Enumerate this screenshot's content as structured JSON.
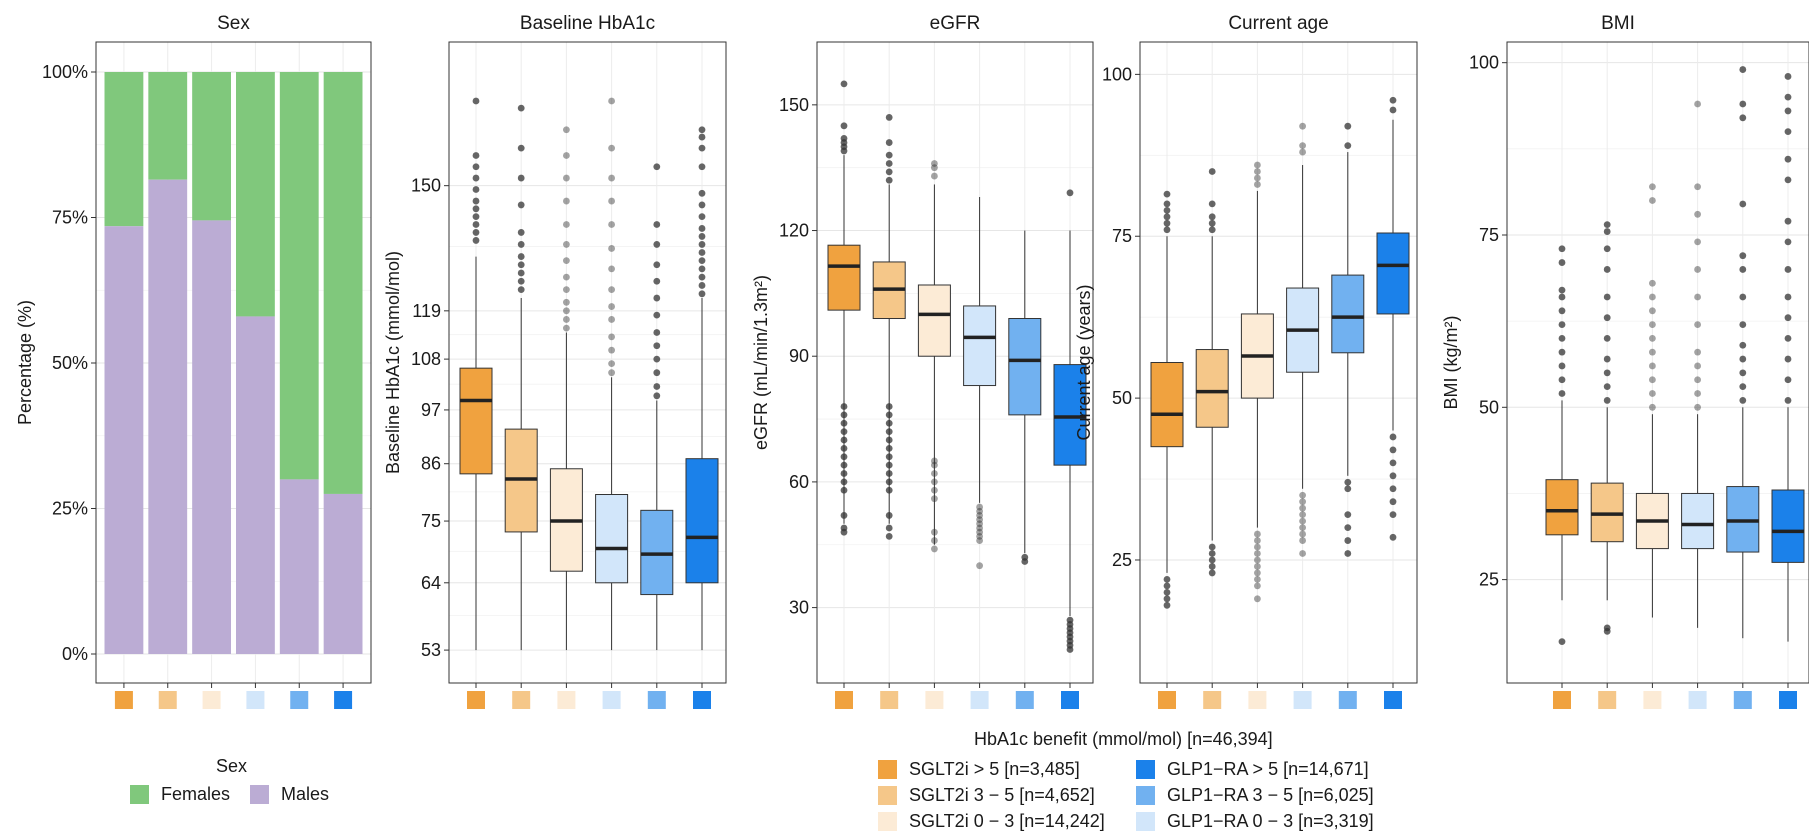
{
  "group_colors": [
    "#F0A23F",
    "#F5C789",
    "#FCEBD6",
    "#D2E6FA",
    "#71B1F0",
    "#1B81EA"
  ],
  "sex_colors": {
    "Females": "#80C87C",
    "Males": "#BBACD4"
  },
  "chart_data": [
    {
      "type": "bar",
      "stacked": true,
      "title": "Sex",
      "ylabel": "Percentage (%)",
      "xlabel": "",
      "ylim": [
        0,
        100
      ],
      "y_tick_labels": [
        "0%",
        "25%",
        "50%",
        "75%",
        "100%"
      ],
      "categories": [
        "SGLT2i > 5",
        "SGLT2i 3 − 5",
        "SGLT2i 0 − 3",
        "GLP1−RA 0 − 3",
        "GLP1−RA 3 − 5",
        "GLP1−RA > 5"
      ],
      "series": [
        {
          "name": "Males",
          "values": [
            73.5,
            81.5,
            74.5,
            58,
            30,
            27.5
          ]
        },
        {
          "name": "Females",
          "values": [
            26.5,
            18.5,
            25.5,
            42,
            70,
            72.5
          ]
        }
      ],
      "grid": true,
      "legend": "bottom"
    },
    {
      "type": "box",
      "title": "Baseline HbA1c",
      "ylabel": "Baseline HbA1c (mmol/mol)",
      "ylim": [
        48,
        190
      ],
      "scale": "sqrt",
      "y_ticks": [
        53,
        64,
        75,
        86,
        97,
        108,
        119,
        150
      ],
      "categories": [
        "SGLT2i > 5",
        "SGLT2i 3 − 5",
        "SGLT2i 0 − 3",
        "GLP1−RA 0 − 3",
        "GLP1−RA 3 − 5",
        "GLP1−RA > 5"
      ],
      "boxes": [
        {
          "whisker_low": 53,
          "q1": 84,
          "median": 99,
          "q3": 106,
          "whisker_high": 132,
          "outliers": [
            136,
            138,
            140,
            142,
            144,
            146,
            149,
            152,
            155,
            158,
            173
          ]
        },
        {
          "whisker_low": 53,
          "q1": 73,
          "median": 83,
          "q3": 93,
          "whisker_high": 122,
          "outliers": [
            124,
            126,
            128,
            130,
            132,
            135,
            138,
            145,
            152,
            160,
            171
          ]
        },
        {
          "whisker_low": 53,
          "q1": 66,
          "median": 75,
          "q3": 85,
          "whisker_high": 114,
          "outliers": [
            115,
            117,
            119,
            121,
            124,
            127,
            131,
            135,
            140,
            146,
            152,
            158,
            165
          ]
        },
        {
          "whisker_low": 53,
          "q1": 64,
          "median": 70,
          "q3": 80,
          "whisker_high": 104,
          "outliers": [
            105,
            107,
            110,
            113,
            117,
            120,
            124,
            129,
            134,
            140,
            146,
            152,
            160,
            173
          ]
        },
        {
          "whisker_low": 53,
          "q1": 62,
          "median": 69,
          "q3": 77,
          "whisker_high": 99,
          "outliers": [
            100,
            102,
            105,
            108,
            111,
            114,
            118,
            122,
            126,
            130,
            135,
            140,
            155
          ]
        },
        {
          "whisker_low": 53,
          "q1": 64,
          "median": 72,
          "q3": 87,
          "whisker_high": 122,
          "outliers": [
            123,
            125,
            127,
            129,
            131,
            133,
            135,
            137,
            139,
            142,
            145,
            148,
            155,
            160,
            163,
            165
          ]
        }
      ]
    },
    {
      "type": "box",
      "title": "eGFR",
      "ylabel": "eGFR (mL/min/1.3m²)",
      "ylim": [
        12,
        165
      ],
      "scale": "linear",
      "y_ticks": [
        30,
        60,
        90,
        120,
        150
      ],
      "categories": [
        "SGLT2i > 5",
        "SGLT2i 3 − 5",
        "SGLT2i 0 − 3",
        "GLP1−RA 0 − 3",
        "GLP1−RA 3 − 5",
        "GLP1−RA > 5"
      ],
      "boxes": [
        {
          "whisker_low": 50,
          "q1": 101,
          "median": 111.5,
          "q3": 116.5,
          "whisker_high": 138,
          "outliers": [
            48,
            49,
            52,
            58,
            60,
            62,
            64,
            66,
            68,
            70,
            72,
            74,
            76,
            78,
            139,
            140,
            141,
            142,
            145,
            155
          ]
        },
        {
          "whisker_low": 50,
          "q1": 99,
          "median": 106,
          "q3": 112.5,
          "whisker_high": 131,
          "outliers": [
            47,
            49,
            52,
            58,
            60,
            62,
            64,
            66,
            68,
            70,
            72,
            74,
            76,
            78,
            132,
            134,
            136,
            138,
            141,
            147
          ]
        },
        {
          "whisker_low": 45,
          "q1": 90,
          "median": 100,
          "q3": 107,
          "whisker_high": 131,
          "outliers": [
            44,
            46,
            48,
            56,
            58,
            60,
            62,
            64,
            65,
            133,
            135,
            136
          ]
        },
        {
          "whisker_low": 55,
          "q1": 83,
          "median": 94.5,
          "q3": 102,
          "whisker_high": 128,
          "outliers": [
            40,
            46,
            47,
            48,
            49,
            50,
            51,
            52,
            53,
            54
          ]
        },
        {
          "whisker_low": 43,
          "q1": 76,
          "median": 89,
          "q3": 99,
          "whisker_high": 120,
          "outliers": [
            41,
            42
          ]
        },
        {
          "whisker_low": 28,
          "q1": 64,
          "median": 75.5,
          "q3": 88,
          "whisker_high": 120,
          "outliers": [
            20,
            21,
            22,
            23,
            24,
            25,
            26,
            27,
            129
          ]
        }
      ]
    },
    {
      "type": "box",
      "title": "Current age",
      "ylabel": "Current age (years)",
      "ylim": [
        6,
        105
      ],
      "scale": "linear",
      "y_ticks": [
        25,
        50,
        75,
        100
      ],
      "categories": [
        "SGLT2i > 5",
        "SGLT2i 3 − 5",
        "SGLT2i 0 − 3",
        "GLP1−RA 0 − 3",
        "GLP1−RA 3 − 5",
        "GLP1−RA > 5"
      ],
      "boxes": [
        {
          "whisker_low": 23,
          "q1": 42.5,
          "median": 47.5,
          "q3": 55.5,
          "whisker_high": 75,
          "outliers": [
            18,
            19,
            20,
            21,
            22,
            76,
            77,
            78,
            79,
            80,
            81.5
          ]
        },
        {
          "whisker_low": 28,
          "q1": 45.5,
          "median": 51,
          "q3": 57.5,
          "whisker_high": 75,
          "outliers": [
            23,
            24,
            25,
            26,
            27,
            76,
            77,
            78,
            80,
            85
          ]
        },
        {
          "whisker_low": 30,
          "q1": 50,
          "median": 56.5,
          "q3": 63,
          "whisker_high": 82,
          "outliers": [
            19,
            21,
            22,
            23,
            24,
            25,
            26,
            27,
            28,
            29,
            83,
            84,
            85,
            86
          ]
        },
        {
          "whisker_low": 36,
          "q1": 54,
          "median": 60.5,
          "q3": 67,
          "whisker_high": 86,
          "outliers": [
            26,
            28,
            29,
            30,
            31,
            32,
            33,
            34,
            35,
            88,
            89,
            92
          ]
        },
        {
          "whisker_low": 38,
          "q1": 57,
          "median": 62.5,
          "q3": 69,
          "whisker_high": 88,
          "outliers": [
            26,
            28,
            30,
            32,
            36,
            37,
            89,
            92
          ]
        },
        {
          "whisker_low": 45,
          "q1": 63,
          "median": 70.5,
          "q3": 75.5,
          "whisker_high": 93,
          "outliers": [
            28.5,
            32,
            34,
            36,
            38,
            40,
            42,
            44,
            94.5,
            96
          ]
        }
      ]
    },
    {
      "type": "box",
      "title": "BMI",
      "ylabel": "BMI (kg/m²)",
      "ylim": [
        10,
        103
      ],
      "scale": "linear",
      "y_ticks": [
        25,
        50,
        75,
        100
      ],
      "categories": [
        "SGLT2i > 5",
        "SGLT2i 3 − 5",
        "SGLT2i 0 − 3",
        "GLP1−RA 0 − 3",
        "GLP1−RA 3 − 5",
        "GLP1−RA > 5"
      ],
      "boxes": [
        {
          "whisker_low": 22,
          "q1": 31.5,
          "median": 35,
          "q3": 39.5,
          "whisker_high": 51,
          "outliers": [
            16,
            52,
            54,
            56,
            58,
            60,
            62,
            64,
            66,
            67,
            71,
            73
          ]
        },
        {
          "whisker_low": 22,
          "q1": 30.5,
          "median": 34.5,
          "q3": 39,
          "whisker_high": 50,
          "outliers": [
            17.5,
            18,
            51,
            53,
            55,
            57,
            60,
            63,
            66,
            70,
            73,
            75.5,
            76.5
          ]
        },
        {
          "whisker_low": 19.5,
          "q1": 29.5,
          "median": 33.5,
          "q3": 37.5,
          "whisker_high": 49,
          "outliers": [
            50,
            52,
            54,
            56,
            58,
            60,
            62,
            64,
            66,
            68,
            80,
            82
          ]
        },
        {
          "whisker_low": 18,
          "q1": 29.5,
          "median": 33,
          "q3": 37.5,
          "whisker_high": 49,
          "outliers": [
            50,
            52,
            54,
            56,
            58,
            62,
            66,
            70,
            74,
            78,
            82,
            94
          ]
        },
        {
          "whisker_low": 16.5,
          "q1": 29,
          "median": 33.5,
          "q3": 38.5,
          "whisker_high": 50,
          "outliers": [
            51,
            53,
            55,
            57,
            59,
            62,
            66,
            70,
            72,
            79.5,
            92,
            94,
            99
          ]
        },
        {
          "whisker_low": 16,
          "q1": 27.5,
          "median": 32,
          "q3": 38,
          "whisker_high": 50,
          "outliers": [
            51,
            54,
            57,
            60,
            63,
            66,
            70,
            74,
            77,
            83,
            86,
            90,
            93,
            95,
            98
          ]
        }
      ]
    }
  ],
  "legend_sex": {
    "title": "Sex",
    "items": [
      {
        "label": "Females",
        "color": "#80C87C"
      },
      {
        "label": "Males",
        "color": "#BBACD4"
      }
    ]
  },
  "legend_groups": {
    "title": "HbA1c benefit (mmol/mol) [n=46,394]",
    "items": [
      {
        "label": "SGLT2i > 5 [n=3,485]",
        "color": "#F0A23F"
      },
      {
        "label": "SGLT2i 3 − 5 [n=4,652]",
        "color": "#F5C789"
      },
      {
        "label": "SGLT2i 0 − 3 [n=14,242]",
        "color": "#FCEBD6"
      },
      {
        "label": "GLP1−RA > 5 [n=14,671]",
        "color": "#1B81EA"
      },
      {
        "label": "GLP1−RA 3 − 5 [n=6,025]",
        "color": "#71B1F0"
      },
      {
        "label": "GLP1−RA 0 − 3 [n=3,319]",
        "color": "#D2E6FA"
      }
    ]
  }
}
